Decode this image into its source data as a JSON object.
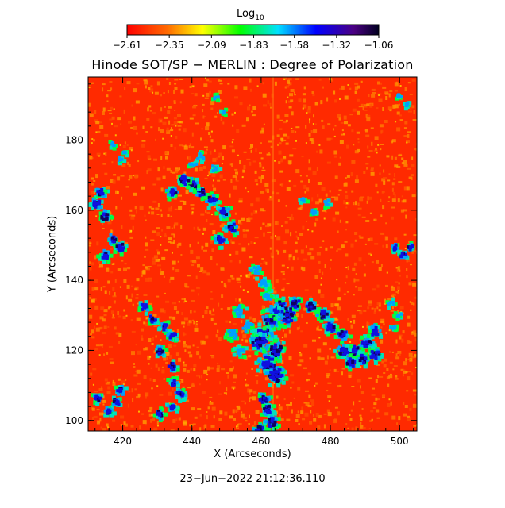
{
  "colorbar": {
    "title": "Log",
    "title_subscript": "10",
    "ticks": [
      "−2.61",
      "−2.35",
      "−2.09",
      "−1.83",
      "−1.58",
      "−1.32",
      "−1.06"
    ],
    "tick_values": [
      -2.61,
      -2.35,
      -2.09,
      -1.83,
      -1.58,
      -1.32,
      -1.06
    ],
    "colormap_stops": [
      "#ff0000",
      "#ff7000",
      "#ffff00",
      "#00ff00",
      "#00c0ff",
      "#0000ff",
      "#000030"
    ]
  },
  "plot": {
    "title": "Hinode SOT/SP − MERLIN : Degree of Polarization",
    "xlabel": "X (Arcseconds)",
    "ylabel": "Y (Arcseconds)",
    "x_ticks": [
      "420",
      "440",
      "460",
      "480",
      "500"
    ],
    "x_tick_values": [
      420,
      440,
      460,
      480,
      500
    ],
    "y_ticks": [
      "100",
      "120",
      "140",
      "160",
      "180"
    ],
    "y_tick_values": [
      100,
      120,
      140,
      160,
      180
    ],
    "xlim": [
      410,
      505
    ],
    "ylim": [
      97,
      198
    ],
    "background_color": "#ff2a00",
    "speckle_color": "#ff8a00"
  },
  "timestamp": "23−Jun−2022 21:12:36.110"
}
